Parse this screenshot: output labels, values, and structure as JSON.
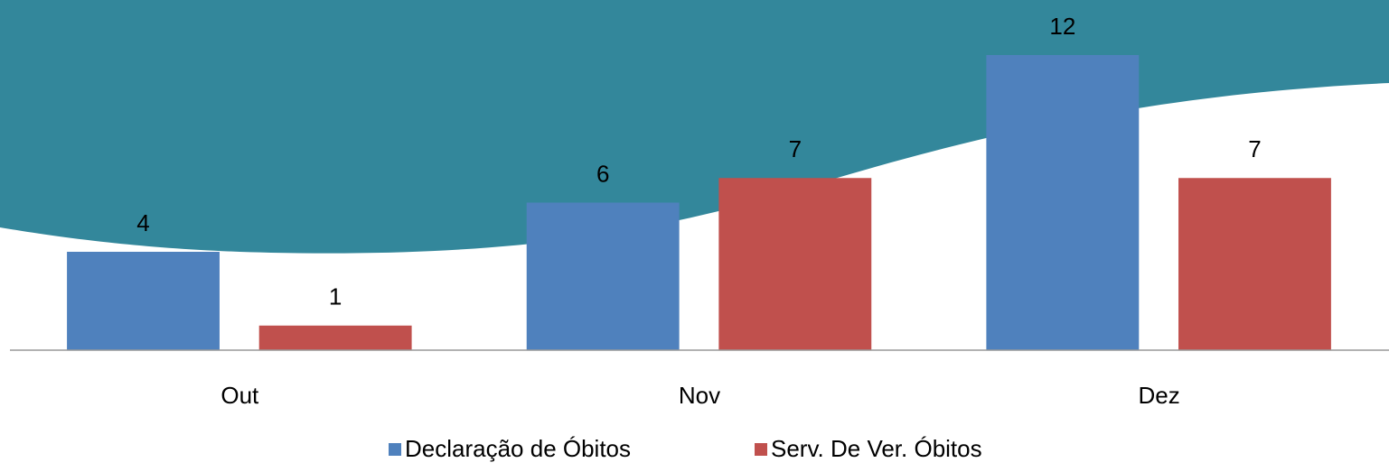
{
  "chart_data": {
    "type": "bar",
    "categories": [
      "Out",
      "Nov",
      "Dez"
    ],
    "series": [
      {
        "name": "Declaração de Óbitos",
        "color": "#4f81bd",
        "values": [
          4,
          6,
          12
        ]
      },
      {
        "name": "Serv. De Ver. Óbitos",
        "color": "#c0504d",
        "values": [
          1,
          7,
          7
        ]
      }
    ],
    "ylim": [
      0,
      14
    ],
    "legend": "bottom"
  }
}
